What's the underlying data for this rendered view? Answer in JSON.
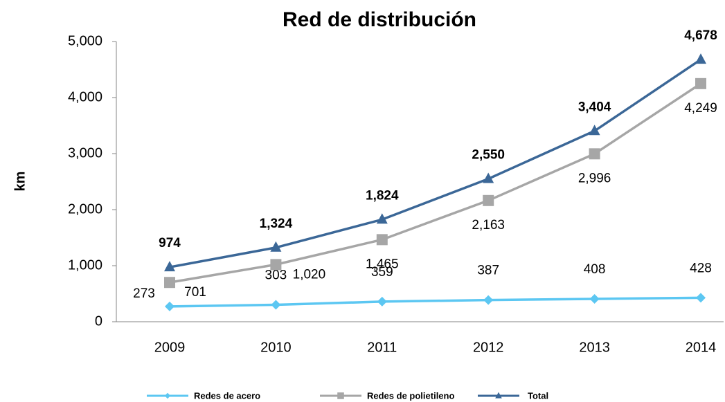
{
  "chart_data": {
    "type": "line",
    "title": "Red de distribución",
    "y_label": "km",
    "categories": [
      "2009",
      "2010",
      "2011",
      "2012",
      "2013",
      "2014"
    ],
    "series": [
      {
        "name": "Redes de acero",
        "color": "#5cc7f2",
        "marker": "diamond",
        "values": [
          273,
          303,
          359,
          387,
          408,
          428
        ]
      },
      {
        "name": "Redes de polietileno",
        "color": "#a6a6a6",
        "marker": "square",
        "values": [
          701,
          1020,
          1465,
          2163,
          2996,
          4249
        ],
        "value_labels": [
          "701",
          "1,020",
          "1,465",
          "2,163",
          "2,996",
          "4,249"
        ]
      },
      {
        "name": "Total",
        "color": "#3b6797",
        "marker": "triangle",
        "values": [
          974,
          1324,
          1824,
          2550,
          3404,
          4678
        ],
        "value_labels": [
          "974",
          "1,324",
          "1,824",
          "2,550",
          "3,404",
          "4,678"
        ]
      }
    ],
    "ylim": [
      0,
      5000
    ],
    "yticks": [
      0,
      {
        "value": 1000,
        "label": "1,000"
      },
      {
        "value": 2000,
        "label": "2,000"
      },
      {
        "value": 3000,
        "label": "3,000"
      },
      {
        "value": 4000,
        "label": "4,000"
      },
      {
        "value": 5000,
        "label": "5,000"
      }
    ],
    "legend": "bottom"
  }
}
